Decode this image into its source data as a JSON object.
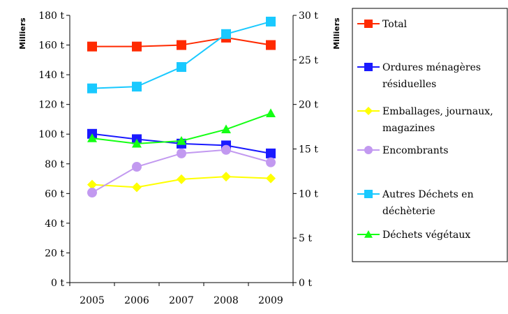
{
  "chart_data": {
    "type": "line",
    "categories": [
      "2005",
      "2006",
      "2007",
      "2008",
      "2009"
    ],
    "left_axis": {
      "unit_label": "Milliers",
      "ylim": [
        0,
        180
      ],
      "ticks": [
        "0 t",
        "20 t",
        "40 t",
        "60 t",
        "80 t",
        "100 t",
        "120 t",
        "140 t",
        "160 t",
        "180 t"
      ]
    },
    "right_axis": {
      "unit_label": "Milliers",
      "ylim": [
        0,
        30
      ],
      "ticks": [
        "0 t",
        "5 t",
        "10 t",
        "15 t",
        "20 t",
        "25 t",
        "30 t"
      ]
    },
    "grid": false,
    "legend_position": "right",
    "series": [
      {
        "name": "Total",
        "axis": "left",
        "color": "#ff2a00",
        "marker": "square",
        "values": [
          159,
          159,
          160,
          165,
          160
        ]
      },
      {
        "name": "Ordures ménagères résiduelles",
        "axis": "right",
        "color": "#1a1aff",
        "marker": "square",
        "values": [
          16.7,
          16.1,
          15.6,
          15.4,
          14.5
        ]
      },
      {
        "name": "Emballages, journaux magazines",
        "axis": "right",
        "color": "#ffff00",
        "marker": "diamond",
        "values": [
          11.0,
          10.7,
          11.6,
          11.9,
          11.7
        ]
      },
      {
        "name": "Encombrants",
        "axis": "right",
        "color": "#c299f0",
        "marker": "circle",
        "values": [
          10.1,
          13.0,
          14.5,
          14.9,
          13.5
        ]
      },
      {
        "name": "Autres Déchets en déchèterie",
        "axis": "right",
        "color": "#19c9ff",
        "marker": "square",
        "values": [
          21.8,
          22.0,
          24.2,
          27.9,
          29.3
        ]
      },
      {
        "name": "Déchets végétaux",
        "axis": "right",
        "color": "#14ff14",
        "marker": "triangle",
        "values": [
          16.2,
          15.6,
          15.9,
          17.2,
          19.0
        ]
      }
    ],
    "legend_lines": [
      [
        "Total"
      ],
      [
        "Ordures ménagères",
        "résiduelles"
      ],
      [
        "Emballages, journaux,",
        "magazines"
      ],
      [
        "Encombrants"
      ],
      [
        "Autres Déchets en",
        "déchèterie"
      ],
      [
        "Déchets végétaux"
      ]
    ]
  }
}
